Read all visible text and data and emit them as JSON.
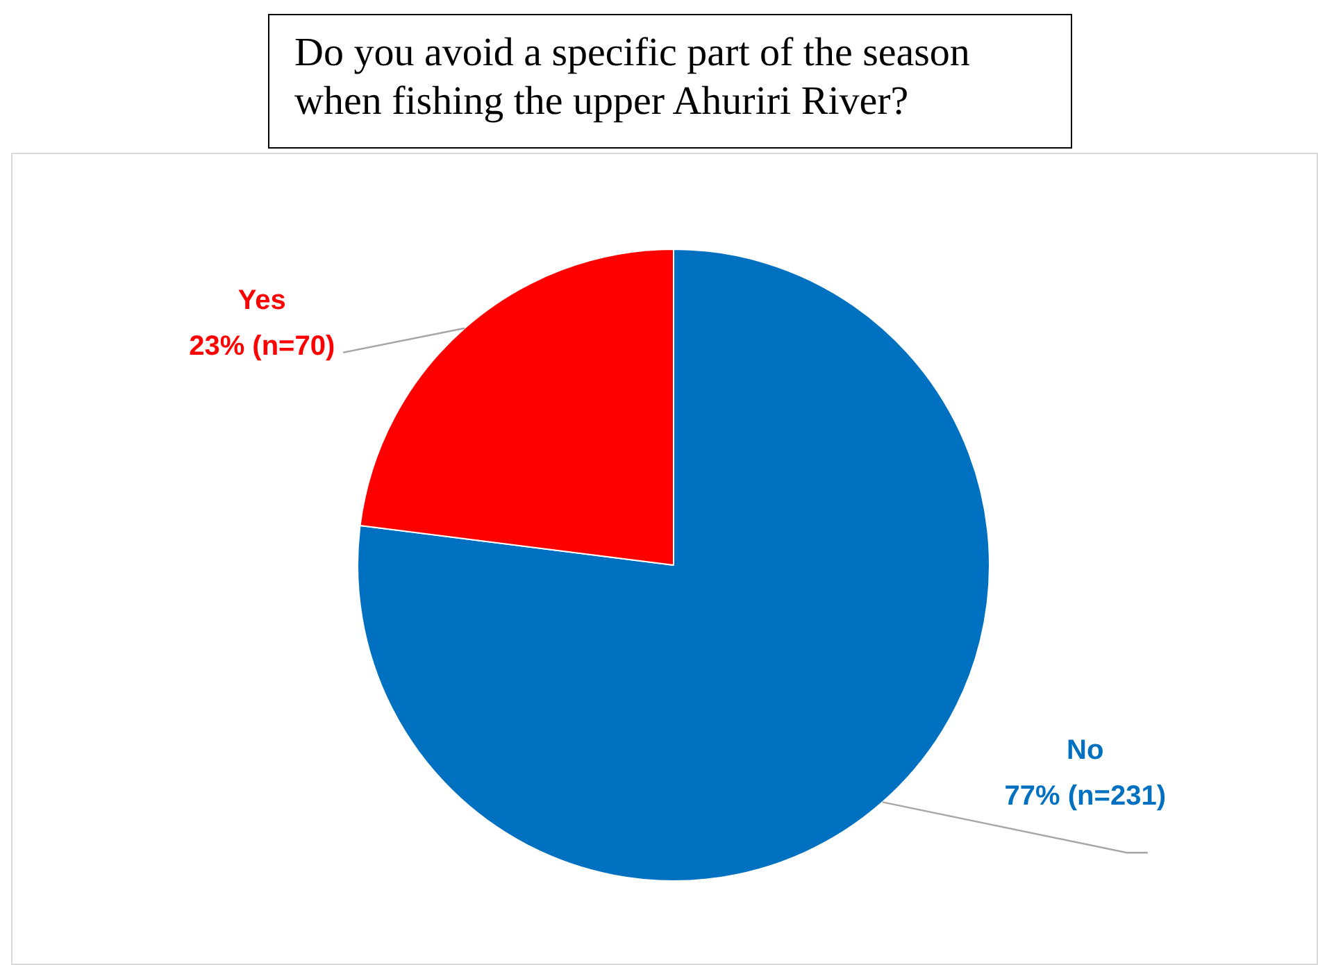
{
  "chart_data": {
    "type": "pie",
    "title": "Do you avoid a specific part of the season when fishing the upper Ahuriri River?",
    "categories": [
      "No",
      "Yes"
    ],
    "values": [
      77,
      23
    ],
    "colors": [
      "#0070c0",
      "#ff0000"
    ],
    "value_labels": [
      "77% (n=231)",
      "23% (n=70)"
    ],
    "legend": false
  }
}
